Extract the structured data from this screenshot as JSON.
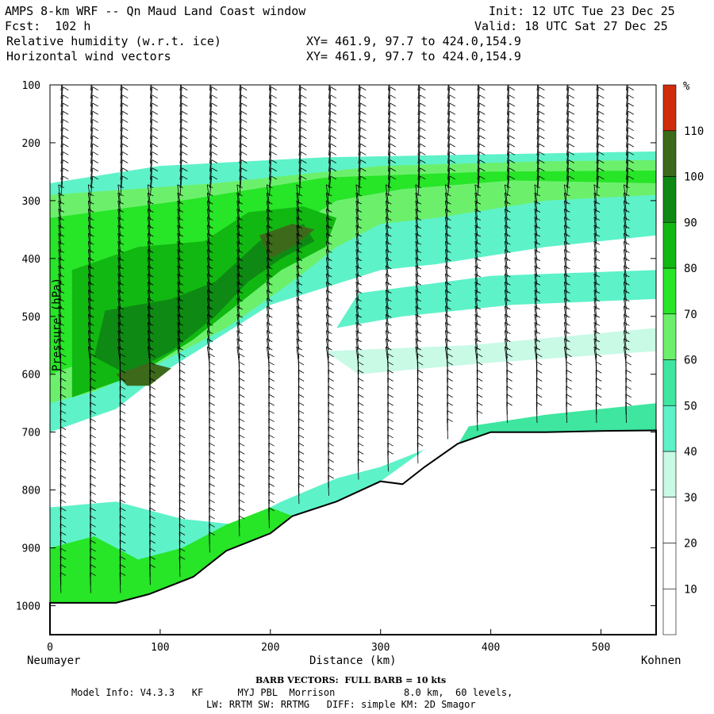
{
  "header": {
    "title": "AMPS 8-km WRF -- Qn Maud Land Coast window",
    "init": "Init: 12 UTC Tue 23 Dec 25",
    "fcst": "Fcst:  102 h",
    "valid": "Valid: 18 UTC Sat 27 Dec 25",
    "field1": "Relative humidity (w.r.t. ice)",
    "field1_xy": "XY= 461.9, 97.7 to 424.0,154.9",
    "field2": "Horizontal wind vectors",
    "field2_xy": "XY= 461.9, 97.7 to 424.0,154.9"
  },
  "chart_data": {
    "type": "contour-cross-section",
    "title": "Relative humidity (w.r.t. ice) and horizontal wind vectors",
    "xlabel": "Distance (km)",
    "ylabel": "Pressure (hPa)",
    "xlim": [
      0,
      550
    ],
    "ylim": [
      1050,
      100
    ],
    "x_ticks": [
      0,
      100,
      200,
      300,
      400,
      500
    ],
    "y_ticks": [
      100,
      200,
      300,
      400,
      500,
      600,
      700,
      800,
      900,
      1000
    ],
    "x_start_label": "Neumayer",
    "x_end_label": "Kohnen",
    "colorbar": {
      "unit": "%",
      "levels": [
        10,
        20,
        30,
        40,
        50,
        60,
        70,
        80,
        90,
        100,
        110
      ],
      "colors": [
        "#ffffff",
        "#ffffff",
        "#ffffff",
        "#c8fae6",
        "#5ef2c9",
        "#3ee6a0",
        "#6cf06c",
        "#27e527",
        "#11b811",
        "#0e8a14",
        "#3d6a1a",
        "#d02b0c"
      ]
    },
    "terrain": [
      {
        "x": 0,
        "p": 995
      },
      {
        "x": 60,
        "p": 995
      },
      {
        "x": 90,
        "p": 980
      },
      {
        "x": 130,
        "p": 950
      },
      {
        "x": 160,
        "p": 905
      },
      {
        "x": 200,
        "p": 875
      },
      {
        "x": 220,
        "p": 845
      },
      {
        "x": 260,
        "p": 820
      },
      {
        "x": 300,
        "p": 785
      },
      {
        "x": 320,
        "p": 790
      },
      {
        "x": 340,
        "p": 760
      },
      {
        "x": 370,
        "p": 720
      },
      {
        "x": 400,
        "p": 700
      },
      {
        "x": 450,
        "p": 700
      },
      {
        "x": 500,
        "p": 698
      },
      {
        "x": 550,
        "p": 697
      }
    ],
    "wind_barbs": "full barb = 10 kts; mostly 10-30 kt, direction varying with height"
  },
  "footer": {
    "barb_note": "BARB VECTORS:  FULL BARB = 10 kts",
    "model_line1": "Model Info: V4.3.3   KF      MYJ PBL  Morrison            8.0 km,  60 levels,",
    "model_line2": "LW: RRTM SW: RRTMG   DIFF: simple KM: 2D Smagor"
  }
}
